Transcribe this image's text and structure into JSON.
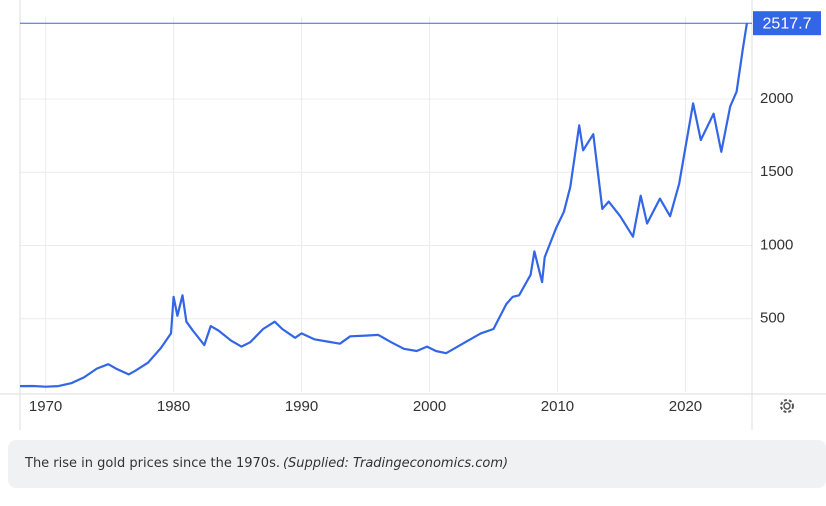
{
  "chart_data": {
    "type": "line",
    "x": [
      1968,
      1969,
      1970,
      1971,
      1972,
      1973,
      1974,
      1974.9,
      1975.5,
      1976.5,
      1977,
      1978,
      1979,
      1979.8,
      1980.0,
      1980.3,
      1980.7,
      1981,
      1981.5,
      1982.4,
      1982.9,
      1983.5,
      1984.5,
      1985.3,
      1986,
      1987,
      1987.9,
      1988.5,
      1989.5,
      1990,
      1991,
      1992,
      1993,
      1993.8,
      1995,
      1996,
      1997,
      1998,
      1999,
      1999.8,
      2000.5,
      2001.3,
      2002,
      2003,
      2004,
      2005,
      2006,
      2006.5,
      2007,
      2007.9,
      2008.2,
      2008.8,
      2009,
      2009.9,
      2010.5,
      2011,
      2011.7,
      2012,
      2012.8,
      2013.5,
      2014,
      2014.9,
      2015.9,
      2016.5,
      2017,
      2018,
      2018.8,
      2019.5,
      2020.6,
      2021.2,
      2022.2,
      2022.8,
      2023.5,
      2024,
      2024.5,
      2024.8
    ],
    "series": [
      {
        "name": "Gold",
        "color": "#3366e6",
        "values": [
          40,
          41,
          36,
          40,
          60,
          100,
          160,
          190,
          160,
          120,
          145,
          200,
          300,
          400,
          650,
          520,
          660,
          480,
          420,
          320,
          450,
          420,
          350,
          310,
          340,
          430,
          480,
          430,
          370,
          400,
          360,
          345,
          330,
          380,
          385,
          390,
          340,
          295,
          280,
          310,
          280,
          265,
          300,
          350,
          400,
          430,
          600,
          650,
          660,
          800,
          960,
          750,
          920,
          1120,
          1230,
          1400,
          1820,
          1650,
          1760,
          1250,
          1300,
          1200,
          1060,
          1340,
          1150,
          1320,
          1200,
          1420,
          1970,
          1720,
          1900,
          1640,
          1950,
          2050,
          2350,
          2517.7
        ]
      }
    ],
    "xlim": [
      1968,
      2025.2
    ],
    "ylim": [
      0,
      2560
    ],
    "xticks": [
      1970,
      1980,
      1990,
      2000,
      2010,
      2020
    ],
    "yticks": [
      500,
      1000,
      1500,
      2000
    ],
    "grid": true
  },
  "caption": {
    "text": "The rise in gold prices since the 1970s.",
    "source": "(Supplied: Tradingeconomics.com)"
  }
}
